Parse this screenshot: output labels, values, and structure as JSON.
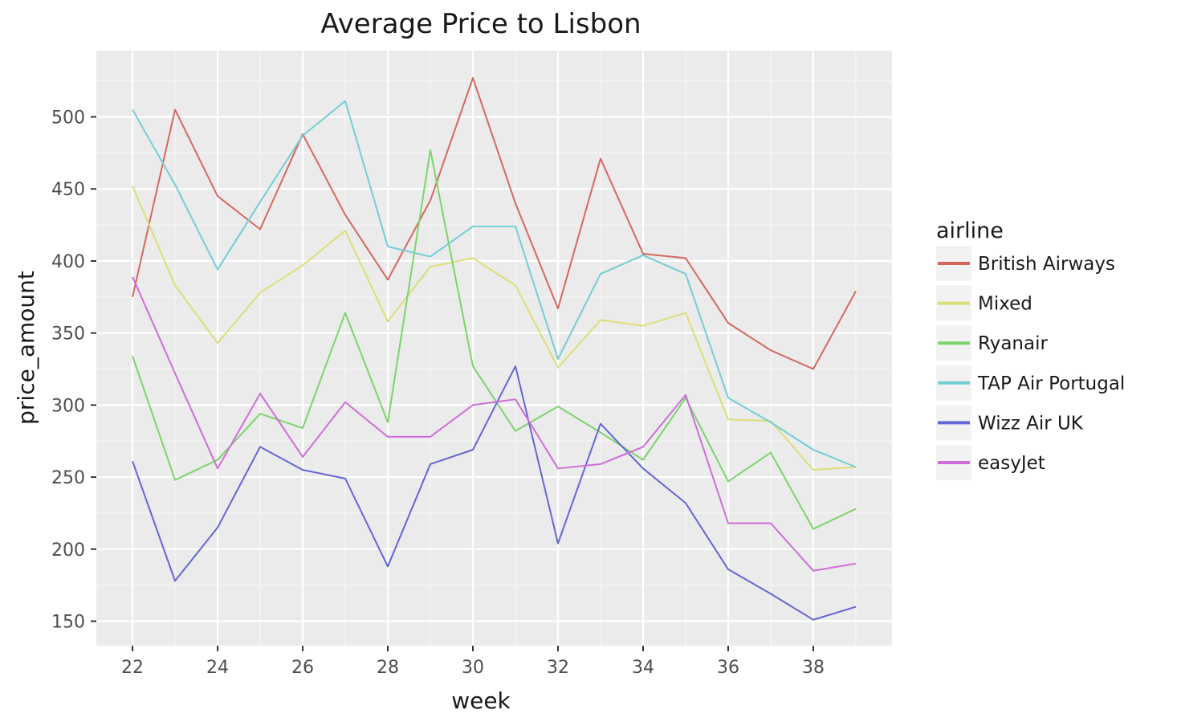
{
  "chart_data": {
    "type": "line",
    "title": "Average Price to Lisbon",
    "xlabel": "week",
    "ylabel": "price_amount",
    "xlim": [
      21.15,
      39.85
    ],
    "ylim": [
      133,
      546
    ],
    "xticks": [
      22,
      24,
      26,
      28,
      30,
      32,
      34,
      36,
      38
    ],
    "yticks": [
      150,
      200,
      250,
      300,
      350,
      400,
      450,
      500
    ],
    "x": [
      22,
      23,
      24,
      25,
      26,
      27,
      28,
      29,
      30,
      31,
      32,
      33,
      34,
      35,
      36,
      37,
      38,
      39
    ],
    "grid": true,
    "legend": {
      "title": "airline",
      "position": "right"
    },
    "series": [
      {
        "name": "British Airways",
        "color": "#d4685f",
        "values": [
          375,
          505,
          445,
          422,
          488,
          432,
          387,
          442,
          527,
          440,
          367,
          471,
          405,
          402,
          357,
          338,
          325,
          379
        ]
      },
      {
        "name": "Mixed",
        "color": "#dbde76",
        "values": [
          452,
          383,
          343,
          378,
          397,
          421,
          358,
          396,
          402,
          383,
          326,
          359,
          355,
          364,
          290,
          289,
          255,
          257
        ]
      },
      {
        "name": "Ryanair",
        "color": "#7dd36c",
        "values": [
          334,
          248,
          262,
          294,
          284,
          364,
          288,
          477,
          327,
          282,
          299,
          281,
          262,
          305,
          247,
          267,
          214,
          228
        ]
      },
      {
        "name": "TAP Air Portugal",
        "color": "#74cdd6",
        "values": [
          505,
          453,
          394,
          441,
          487,
          511,
          410,
          403,
          424,
          424,
          332,
          391,
          404,
          391,
          305,
          288,
          269,
          257
        ]
      },
      {
        "name": "Wizz Air UK",
        "color": "#6565d6",
        "values": [
          261,
          178,
          215,
          271,
          255,
          249,
          188,
          259,
          269,
          327,
          204,
          287,
          256,
          232,
          186,
          169,
          151,
          160
        ]
      },
      {
        "name": "easyJet",
        "color": "#cd6ed8",
        "values": [
          389,
          322,
          256,
          308,
          264,
          302,
          278,
          278,
          300,
          304,
          256,
          259,
          271,
          307,
          218,
          218,
          185,
          190
        ]
      }
    ]
  }
}
